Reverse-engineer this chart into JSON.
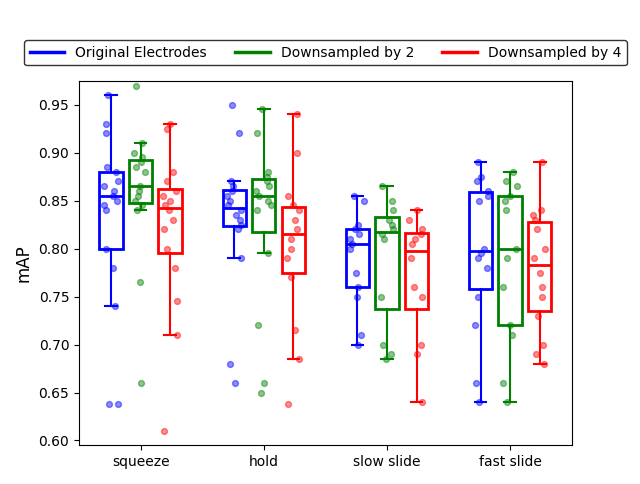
{
  "title": "",
  "ylabel": "mAP",
  "xlabel": "",
  "ylim": [
    0.595,
    0.975
  ],
  "yticks": [
    0.6,
    0.65,
    0.7,
    0.75,
    0.8,
    0.85,
    0.9,
    0.95
  ],
  "categories": [
    "squeeze",
    "hold",
    "slow slide",
    "fast slide"
  ],
  "colors": {
    "original": "#0000ff",
    "down2": "#008000",
    "down4": "#ff0000"
  },
  "legend_labels": [
    "Original Electrodes",
    "Downsampled by 2",
    "Downsampled by 4"
  ],
  "data": {
    "squeeze": {
      "original": [
        0.638,
        0.638,
        0.74,
        0.78,
        0.8,
        0.84,
        0.845,
        0.85,
        0.855,
        0.86,
        0.865,
        0.87,
        0.88,
        0.885,
        0.92,
        0.93,
        0.96
      ],
      "down2": [
        0.66,
        0.765,
        0.84,
        0.845,
        0.85,
        0.855,
        0.86,
        0.865,
        0.88,
        0.885,
        0.89,
        0.895,
        0.9,
        0.91,
        0.97
      ],
      "down4": [
        0.61,
        0.71,
        0.745,
        0.78,
        0.8,
        0.82,
        0.83,
        0.84,
        0.845,
        0.85,
        0.855,
        0.86,
        0.87,
        0.88,
        0.925,
        0.93
      ]
    },
    "hold": {
      "original": [
        0.66,
        0.68,
        0.79,
        0.82,
        0.825,
        0.83,
        0.835,
        0.84,
        0.845,
        0.85,
        0.855,
        0.86,
        0.865,
        0.87,
        0.92,
        0.95
      ],
      "down2": [
        0.65,
        0.66,
        0.72,
        0.795,
        0.84,
        0.845,
        0.85,
        0.855,
        0.86,
        0.865,
        0.87,
        0.875,
        0.88,
        0.92,
        0.945
      ],
      "down4": [
        0.638,
        0.685,
        0.715,
        0.77,
        0.79,
        0.8,
        0.81,
        0.82,
        0.83,
        0.84,
        0.845,
        0.855,
        0.9,
        0.94
      ]
    },
    "slow slide": {
      "original": [
        0.7,
        0.71,
        0.75,
        0.76,
        0.775,
        0.8,
        0.805,
        0.81,
        0.815,
        0.82,
        0.825,
        0.85,
        0.855
      ],
      "down2": [
        0.685,
        0.69,
        0.7,
        0.75,
        0.81,
        0.815,
        0.82,
        0.825,
        0.83,
        0.84,
        0.85,
        0.865
      ],
      "down4": [
        0.64,
        0.69,
        0.7,
        0.75,
        0.76,
        0.79,
        0.805,
        0.81,
        0.815,
        0.82,
        0.83,
        0.84
      ]
    },
    "fast slide": {
      "original": [
        0.64,
        0.66,
        0.72,
        0.75,
        0.78,
        0.79,
        0.795,
        0.8,
        0.85,
        0.855,
        0.86,
        0.87,
        0.875,
        0.89
      ],
      "down2": [
        0.64,
        0.66,
        0.71,
        0.72,
        0.76,
        0.79,
        0.8,
        0.84,
        0.85,
        0.855,
        0.865,
        0.87,
        0.88
      ],
      "down4": [
        0.68,
        0.69,
        0.7,
        0.73,
        0.75,
        0.76,
        0.775,
        0.79,
        0.8,
        0.82,
        0.83,
        0.835,
        0.84,
        0.89
      ]
    }
  }
}
